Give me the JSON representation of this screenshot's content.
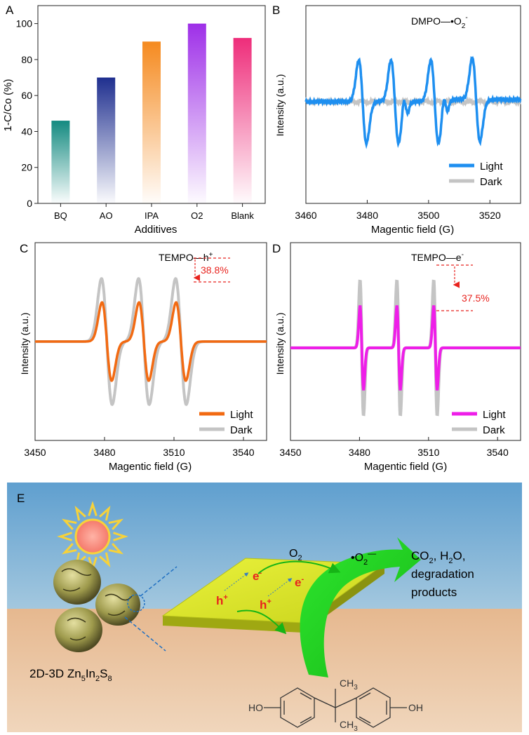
{
  "chart_data": [
    {
      "panel": "A",
      "type": "bar",
      "categories": [
        "BQ",
        "AO",
        "IPA",
        "O2",
        "Blank"
      ],
      "values": [
        46,
        70,
        90,
        100,
        92
      ],
      "bar_colors": [
        "#138a80",
        "#1f2f8f",
        "#f58a1f",
        "#9e2fe8",
        "#ee2d7a"
      ],
      "xlabel": "Additives",
      "ylabel": "1-C/Co (%)",
      "ylim": [
        0,
        110
      ],
      "yticks": [
        "0",
        "20",
        "40",
        "60",
        "80",
        "100"
      ]
    },
    {
      "panel": "B",
      "type": "line",
      "annotation": "DMPO—•O2−",
      "xlabel": "Magentic field (G)",
      "ylabel": "Intensity (a.u.)",
      "xlim": [
        3460,
        3530
      ],
      "xticks": [
        "3460",
        "3480",
        "3500",
        "3520"
      ],
      "series": [
        {
          "name": "Light",
          "color": "#1e8ff0"
        },
        {
          "name": "Dark",
          "color": "#c4c4c4"
        }
      ],
      "peaks_G": [
        3478.5,
        3489,
        3502,
        3515.5
      ],
      "secondary_peaks_G": [
        3492.5,
        3505.5
      ]
    },
    {
      "panel": "C",
      "type": "line",
      "annotation": "TEMPO—h+",
      "reduction_label": "38.8%",
      "xlabel": "Magentic field (G)",
      "ylabel": "Intensity (a.u.)",
      "xlim": [
        3450,
        3550
      ],
      "xticks": [
        "3450",
        "3480",
        "3510",
        "3540"
      ],
      "series": [
        {
          "name": "Light",
          "color": "#f26a12"
        },
        {
          "name": "Dark",
          "color": "#c4c4c4"
        }
      ],
      "peaks_G": [
        3481,
        3497,
        3513
      ]
    },
    {
      "panel": "D",
      "type": "line",
      "annotation": "TEMPO—e−",
      "reduction_label": "37.5%",
      "xlabel": "Magentic field (G)",
      "ylabel": "Intensity (a.u.)",
      "xlim": [
        3450,
        3550
      ],
      "xticks": [
        "3450",
        "3480",
        "3510",
        "3540"
      ],
      "series": [
        {
          "name": "Light",
          "color": "#ee1ee8"
        },
        {
          "name": "Dark",
          "color": "#c4c4c4"
        }
      ],
      "peaks_G": [
        3481,
        3497,
        3513
      ]
    }
  ],
  "panel_labels": [
    "A",
    "B",
    "C",
    "D",
    "E"
  ],
  "scheme": {
    "o2": "O2",
    "superoxide": "•O2−",
    "products_line1": "CO2, H2O,",
    "products_line2": "degradation",
    "products_line3": "products",
    "electron": "e-",
    "hole": "h+",
    "material": "2D-3D Zn5In2S8",
    "bpa_ho_left": "HO",
    "bpa_oh_right": "OH",
    "bpa_ch3_top": "CH3",
    "bpa_ch3_bottom": "CH3"
  }
}
